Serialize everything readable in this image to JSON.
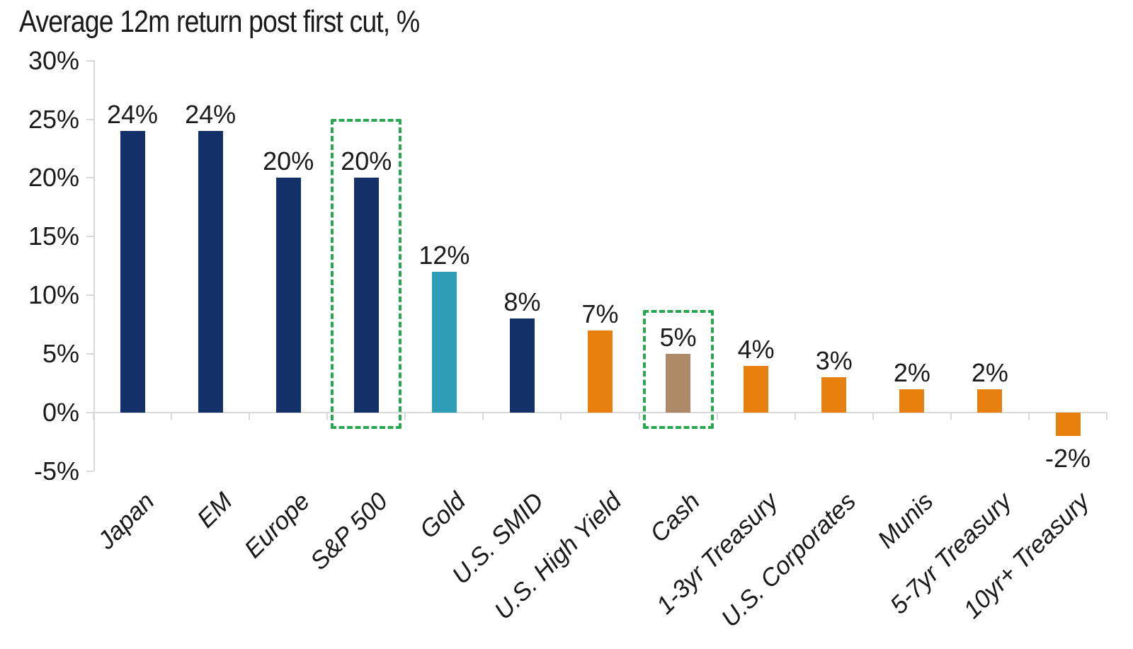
{
  "title": "Average 12m return post first cut, %",
  "chart_data": {
    "type": "bar",
    "title": "Average 12m return post first cut, %",
    "xlabel": "",
    "ylabel": "",
    "categories": [
      "Japan",
      "EM",
      "Europe",
      "S&P 500",
      "Gold",
      "U.S. SMID",
      "U.S. High Yield",
      "Cash",
      "1-3yr Treasury",
      "U.S. Corporates",
      "Munis",
      "5-7yr Treasury",
      "10yr+ Treasury"
    ],
    "values": [
      24,
      24,
      20,
      20,
      12,
      8,
      7,
      5,
      4,
      3,
      2,
      2,
      -2
    ],
    "data_labels": [
      "24%",
      "24%",
      "20%",
      "20%",
      "12%",
      "8%",
      "7%",
      "5%",
      "4%",
      "3%",
      "2%",
      "2%",
      "-2%"
    ],
    "bar_colors": [
      "#133168",
      "#133168",
      "#133168",
      "#133168",
      "#2e9db6",
      "#133168",
      "#e8800f",
      "#ae8a68",
      "#e8800f",
      "#e8800f",
      "#e8800f",
      "#e8800f",
      "#e8800f"
    ],
    "highlighted_categories": [
      "S&P 500",
      "Cash"
    ],
    "highlight_color": "#27a750",
    "y_ticks": [
      "30%",
      "25%",
      "20%",
      "15%",
      "10%",
      "5%",
      "0%",
      "-5%"
    ],
    "y_tick_values": [
      30,
      25,
      20,
      15,
      10,
      5,
      0,
      -5
    ],
    "ylim": [
      -5,
      30
    ],
    "grid": false,
    "legend": false,
    "axis_color": "#d9d9d9",
    "text_color": "#1a1a1a"
  }
}
